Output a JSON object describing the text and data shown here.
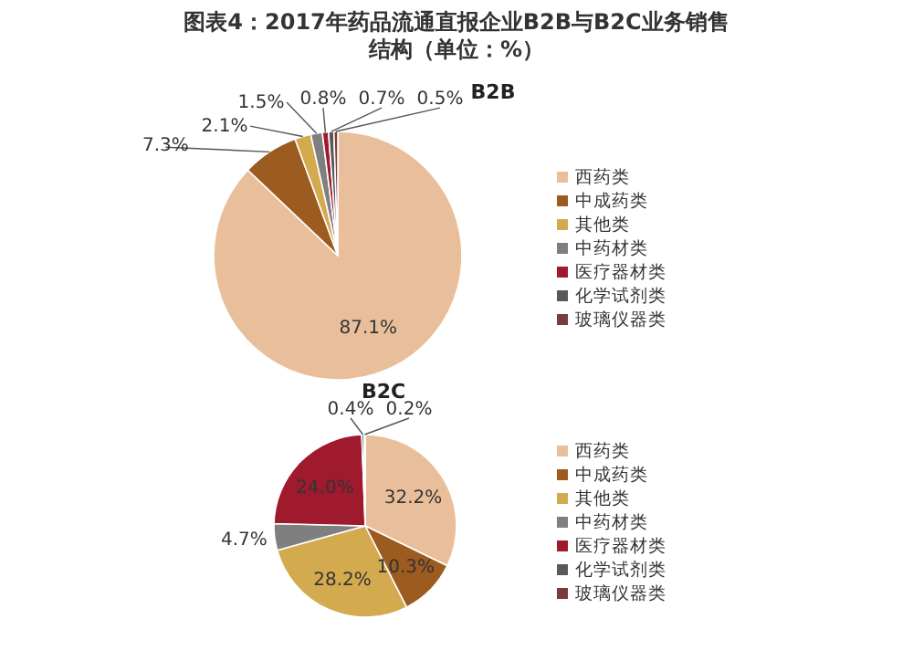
{
  "chart_data": [
    {
      "type": "pie",
      "title": "图表4：2017年药品流通直报企业B2B与B2C业务销售结构（单位：%）",
      "subtitle": "B2B",
      "categories": [
        "西药类",
        "中成药类",
        "其他类",
        "中药材类",
        "医疗器材类",
        "化学试剂类",
        "玻璃仪器类"
      ],
      "values": [
        87.1,
        7.3,
        2.1,
        1.5,
        0.8,
        0.7,
        0.5
      ],
      "value_labels": [
        "87.1%",
        "7.3%",
        "2.1%",
        "1.5%",
        "0.8%",
        "0.7%",
        "0.5%"
      ],
      "colors": [
        "#e9bf9b",
        "#9c5b1f",
        "#d4aa4f",
        "#7f7f7f",
        "#a01a2e",
        "#595959",
        "#7a3b3b"
      ],
      "legend": "right"
    },
    {
      "type": "pie",
      "title": "B2C",
      "categories": [
        "西药类",
        "中成药类",
        "其他类",
        "中药材类",
        "医疗器材类",
        "化学试剂类",
        "玻璃仪器类"
      ],
      "values": [
        32.2,
        10.3,
        28.2,
        4.7,
        24.0,
        0.4,
        0.2
      ],
      "value_labels": [
        "32.2%",
        "10.3%",
        "28.2%",
        "4.7%",
        "24.0%",
        "0.4%",
        "0.2%"
      ],
      "colors": [
        "#e9bf9b",
        "#9c5b1f",
        "#d4aa4f",
        "#7f7f7f",
        "#a01a2e",
        "#595959",
        "#7a3b3b"
      ],
      "legend": "right"
    }
  ]
}
